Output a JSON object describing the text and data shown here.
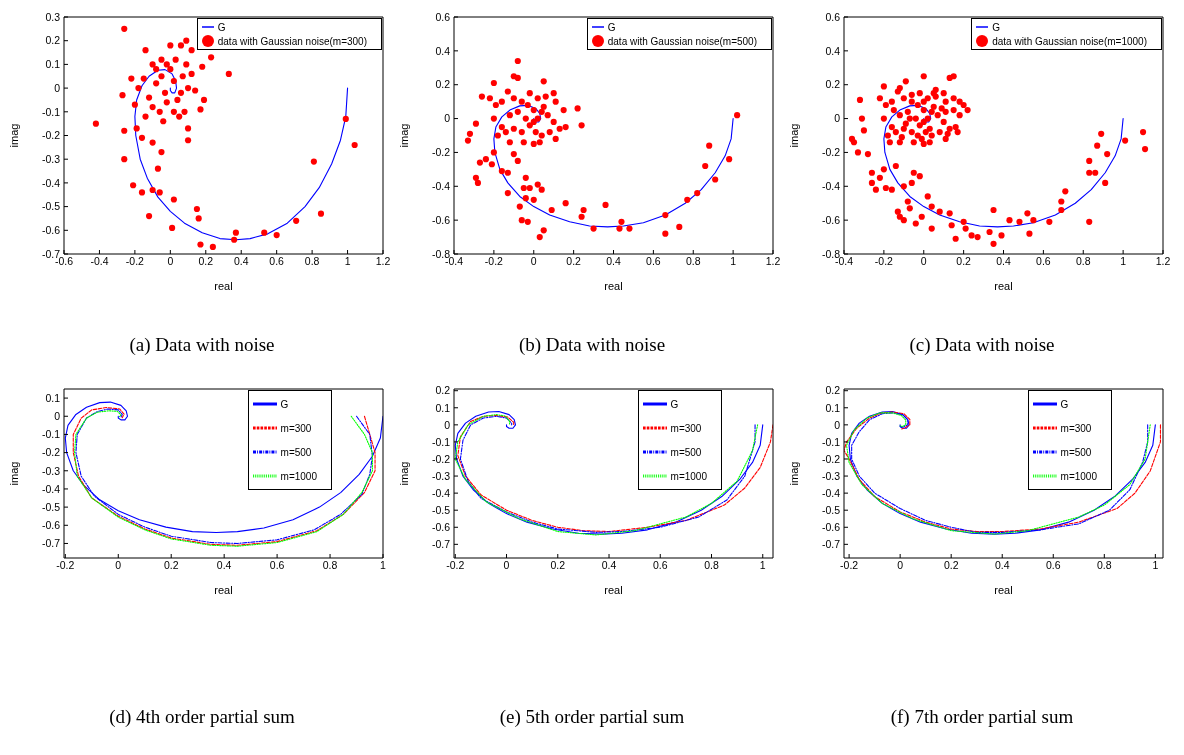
{
  "chart_data": [
    {
      "type": "scatter",
      "title": "(a) Data with noise",
      "xlabel": "real",
      "ylabel": "imag",
      "xlim": [
        -0.6,
        1.2
      ],
      "xticks": [
        -0.6,
        -0.4,
        -0.2,
        0,
        0.2,
        0.4,
        0.6,
        0.8,
        1,
        1.2
      ],
      "ylim": [
        -0.7,
        0.3
      ],
      "yticks": [
        -0.7,
        -0.6,
        -0.5,
        -0.4,
        -0.3,
        -0.2,
        -0.1,
        0,
        0.1,
        0.2,
        0.3
      ],
      "grid": false,
      "legend": "top right",
      "series": [
        {
          "name": "G",
          "type": "line",
          "color": "#0000ff",
          "line_style": "solid",
          "x": [
            1,
            0.99,
            0.96,
            0.91,
            0.84,
            0.76,
            0.66,
            0.55,
            0.45,
            0.37,
            0.28,
            0.18,
            0.08,
            0.0,
            -0.07,
            -0.13,
            -0.17,
            -0.195,
            -0.2,
            -0.19,
            -0.16,
            -0.12,
            -0.07,
            -0.03,
            0.01,
            0.03,
            0.035,
            0.025,
            0.01,
            0.0,
            0.0
          ],
          "values": [
            0,
            -0.12,
            -0.22,
            -0.32,
            -0.42,
            -0.5,
            -0.57,
            -0.615,
            -0.635,
            -0.64,
            -0.635,
            -0.61,
            -0.57,
            -0.52,
            -0.46,
            -0.38,
            -0.3,
            -0.2,
            -0.12,
            -0.05,
            0.01,
            0.05,
            0.075,
            0.078,
            0.06,
            0.03,
            0.0,
            -0.02,
            -0.02,
            -0.01,
            0.0
          ]
        },
        {
          "name": "data with Gaussian noise(m=300)",
          "marker": "circle",
          "color": "#ff0000",
          "x": [
            -0.26,
            -0.42,
            -0.26,
            -0.26,
            -0.27,
            -0.21,
            -0.16,
            -0.12,
            -0.1,
            -0.06,
            -0.07,
            -0.05,
            -0.1,
            -0.16,
            -0.19,
            0.02,
            0.01,
            0.15,
            0.16,
            0.17,
            0.24,
            0.37,
            0.36,
            0.53,
            0.6,
            0.71,
            0.81,
            0.85,
            0.99,
            1.04,
            0.33,
            0.23,
            0.18,
            0.1,
            0.1,
            0.17,
            0.19,
            -0.14,
            -0.1,
            -0.05,
            0.0,
            0.06,
            0.09,
            0.12,
            -0.22,
            -0.18,
            -0.15,
            -0.12,
            -0.08,
            -0.05,
            -0.03,
            0.0,
            0.02,
            0.04,
            0.07,
            0.1,
            0.12,
            0.14,
            -0.1,
            -0.06,
            -0.02,
            0.02,
            0.05,
            0.08,
            -0.14,
            -0.2,
            0.06,
            -0.02,
            0.03,
            -0.08,
            0.09,
            -0.04
          ],
          "values": [
            0.25,
            -0.15,
            -0.3,
            -0.18,
            -0.03,
            -0.41,
            -0.44,
            -0.54,
            -0.43,
            -0.44,
            -0.34,
            -0.27,
            -0.23,
            -0.21,
            -0.17,
            -0.47,
            -0.59,
            -0.51,
            -0.55,
            -0.66,
            -0.67,
            -0.61,
            -0.64,
            -0.61,
            -0.62,
            -0.56,
            -0.31,
            -0.53,
            -0.13,
            -0.24,
            0.06,
            0.13,
            0.09,
            -0.17,
            -0.22,
            -0.09,
            -0.05,
            0.16,
            0.1,
            0.12,
            0.18,
            0.18,
            0.2,
            0.16,
            0.04,
            0.0,
            0.04,
            -0.04,
            0.02,
            0.05,
            -0.02,
            0.08,
            0.03,
            -0.05,
            0.05,
            0.0,
            0.06,
            -0.01,
            -0.08,
            -0.1,
            -0.06,
            -0.1,
            -0.12,
            -0.1,
            -0.12,
            -0.07,
            -0.02,
            0.1,
            0.12,
            0.08,
            0.1,
            -0.14
          ]
        }
      ]
    },
    {
      "type": "scatter",
      "title": "(b) Data with noise",
      "xlabel": "real",
      "ylabel": "imag",
      "xlim": [
        -0.4,
        1.2
      ],
      "xticks": [
        -0.4,
        -0.2,
        0,
        0.2,
        0.4,
        0.6,
        0.8,
        1,
        1.2
      ],
      "ylim": [
        -0.8,
        0.6
      ],
      "yticks": [
        -0.8,
        -0.6,
        -0.4,
        -0.2,
        0,
        0.2,
        0.4,
        0.6
      ],
      "grid": false,
      "legend": "top right",
      "series": [
        {
          "name": "G",
          "type": "line",
          "color": "#0000ff",
          "line_style": "solid",
          "x": [
            1,
            0.99,
            0.96,
            0.91,
            0.84,
            0.76,
            0.66,
            0.55,
            0.45,
            0.37,
            0.28,
            0.18,
            0.08,
            0.0,
            -0.07,
            -0.13,
            -0.17,
            -0.195,
            -0.2,
            -0.19,
            -0.16,
            -0.12,
            -0.07,
            -0.03,
            0.01,
            0.03,
            0.035,
            0.025,
            0.01,
            0.0,
            0.0
          ],
          "values": [
            0,
            -0.12,
            -0.22,
            -0.32,
            -0.42,
            -0.5,
            -0.57,
            -0.615,
            -0.635,
            -0.64,
            -0.635,
            -0.61,
            -0.57,
            -0.52,
            -0.46,
            -0.38,
            -0.3,
            -0.2,
            -0.12,
            -0.05,
            0.01,
            0.05,
            0.075,
            0.078,
            0.06,
            0.03,
            0.0,
            -0.02,
            -0.02,
            -0.01,
            0.0
          ]
        },
        {
          "name": "data with Gaussian noise(m=500)",
          "marker": "circle",
          "color": "#ff0000",
          "x": [
            -0.33,
            -0.32,
            -0.29,
            -0.29,
            -0.28,
            -0.27,
            -0.24,
            -0.21,
            -0.2,
            -0.16,
            -0.13,
            -0.13,
            -0.1,
            -0.08,
            -0.07,
            -0.06,
            -0.03,
            -0.04,
            -0.04,
            -0.05,
            -0.02,
            0.0,
            0.02,
            0.04,
            0.05,
            0.03,
            0.09,
            0.16,
            0.24,
            0.25,
            0.3,
            0.36,
            0.43,
            0.44,
            0.48,
            0.66,
            0.66,
            0.73,
            0.77,
            0.82,
            0.86,
            0.88,
            0.91,
            0.98,
            1.02,
            0.22,
            0.24,
            -0.08,
            -0.1,
            -0.08,
            -0.2,
            -0.26,
            0.05,
            -0.22,
            -0.19,
            -0.16,
            -0.13,
            -0.1,
            -0.06,
            -0.02,
            0.02,
            0.06,
            0.1,
            0.11,
            0.15,
            -0.2,
            -0.16,
            -0.12,
            -0.08,
            -0.04,
            0.0,
            0.02,
            0.04,
            0.07,
            0.1,
            0.13,
            0.16,
            -0.18,
            -0.14,
            -0.1,
            -0.06,
            -0.02,
            0.01,
            0.04,
            0.08,
            0.11,
            -0.12,
            -0.05,
            0.0,
            0.03,
            -0.03,
            0.0,
            0.05
          ],
          "values": [
            -0.13,
            -0.09,
            -0.03,
            -0.35,
            -0.38,
            -0.26,
            -0.24,
            -0.27,
            -0.2,
            -0.31,
            -0.44,
            -0.32,
            -0.21,
            -0.25,
            -0.52,
            -0.6,
            -0.61,
            -0.47,
            -0.35,
            -0.41,
            -0.41,
            -0.48,
            -0.39,
            -0.42,
            -0.66,
            -0.7,
            -0.54,
            -0.5,
            -0.58,
            -0.54,
            -0.65,
            -0.51,
            -0.65,
            -0.61,
            -0.65,
            -0.68,
            -0.57,
            -0.64,
            -0.48,
            -0.44,
            -0.28,
            -0.16,
            -0.36,
            -0.24,
            0.02,
            0.06,
            -0.04,
            0.34,
            0.25,
            0.24,
            0.21,
            0.13,
            0.22,
            0.12,
            0.08,
            0.1,
            0.16,
            0.12,
            0.1,
            0.15,
            0.12,
            0.13,
            0.15,
            0.1,
            0.05,
            0.0,
            -0.05,
            0.02,
            0.04,
            0.0,
            0.05,
            0.0,
            0.04,
            0.02,
            -0.02,
            -0.06,
            -0.05,
            -0.1,
            -0.08,
            -0.06,
            -0.08,
            -0.04,
            -0.08,
            -0.1,
            -0.08,
            -0.12,
            -0.14,
            -0.14,
            -0.15,
            -0.14,
            0.08,
            -0.02,
            0.07
          ]
        }
      ]
    },
    {
      "type": "scatter",
      "title": "(c) Data with noise",
      "xlabel": "real",
      "ylabel": "imag",
      "xlim": [
        -0.4,
        1.2
      ],
      "xticks": [
        -0.4,
        -0.2,
        0,
        0.2,
        0.4,
        0.6,
        0.8,
        1,
        1.2
      ],
      "ylim": [
        -0.8,
        0.6
      ],
      "yticks": [
        -0.8,
        -0.6,
        -0.4,
        -0.2,
        0,
        0.2,
        0.4,
        0.6
      ],
      "grid": false,
      "legend": "top right",
      "series": [
        {
          "name": "G",
          "type": "line",
          "color": "#0000ff",
          "line_style": "solid",
          "x": [
            1,
            0.99,
            0.96,
            0.91,
            0.84,
            0.76,
            0.66,
            0.55,
            0.45,
            0.37,
            0.28,
            0.18,
            0.08,
            0.0,
            -0.07,
            -0.13,
            -0.17,
            -0.195,
            -0.2,
            -0.19,
            -0.16,
            -0.12,
            -0.07,
            -0.03,
            0.01,
            0.03,
            0.035,
            0.025,
            0.01,
            0.0,
            0.0
          ],
          "values": [
            0,
            -0.12,
            -0.22,
            -0.32,
            -0.42,
            -0.5,
            -0.57,
            -0.615,
            -0.635,
            -0.64,
            -0.635,
            -0.61,
            -0.57,
            -0.52,
            -0.46,
            -0.38,
            -0.3,
            -0.2,
            -0.12,
            -0.05,
            0.01,
            0.05,
            0.075,
            0.078,
            0.06,
            0.03,
            0.0,
            -0.02,
            -0.02,
            -0.01,
            0.0
          ]
        },
        {
          "name": "data with Gaussian noise(m=1000)",
          "marker": "circle",
          "color": "#ff0000",
          "x": [
            -0.36,
            -0.35,
            -0.33,
            -0.32,
            -0.31,
            -0.3,
            -0.28,
            -0.26,
            -0.26,
            -0.24,
            -0.22,
            -0.2,
            -0.19,
            -0.16,
            -0.14,
            -0.13,
            -0.12,
            -0.1,
            -0.1,
            -0.08,
            -0.07,
            -0.06,
            -0.05,
            -0.04,
            -0.02,
            -0.01,
            0.02,
            0.04,
            0.04,
            0.08,
            0.13,
            0.14,
            0.16,
            0.2,
            0.21,
            0.24,
            0.27,
            0.33,
            0.35,
            0.35,
            0.39,
            0.43,
            0.48,
            0.52,
            0.53,
            0.55,
            0.63,
            0.69,
            0.69,
            0.71,
            0.83,
            0.83,
            0.83,
            0.86,
            0.87,
            0.89,
            0.91,
            0.92,
            1.01,
            1.1,
            1.11,
            0.0,
            0.15,
            0.13,
            -0.09,
            0.22,
            0.18,
            -0.2,
            -0.22,
            -0.19,
            -0.16,
            -0.13,
            -0.1,
            -0.06,
            -0.02,
            0.02,
            0.06,
            0.1,
            0.11,
            0.15,
            -0.2,
            -0.16,
            -0.12,
            -0.08,
            -0.04,
            0.0,
            0.02,
            0.04,
            0.07,
            0.1,
            0.13,
            0.16,
            -0.18,
            -0.14,
            -0.1,
            -0.06,
            -0.02,
            0.01,
            0.04,
            0.08,
            0.11,
            -0.12,
            -0.05,
            0.0,
            0.03,
            -0.03,
            0.0,
            0.05,
            -0.15,
            -0.12,
            -0.09,
            -0.06,
            -0.03,
            0.0,
            0.03,
            0.06,
            0.09,
            0.12,
            0.15,
            0.18,
            -0.17,
            -0.11,
            -0.07,
            -0.01,
            0.05,
            0.11,
            0.17,
            0.2
          ],
          "values": [
            -0.12,
            -0.14,
            -0.2,
            0.11,
            0.0,
            -0.07,
            -0.21,
            -0.32,
            -0.38,
            -0.42,
            -0.35,
            -0.3,
            -0.41,
            -0.42,
            -0.28,
            -0.55,
            -0.58,
            -0.4,
            -0.6,
            -0.49,
            -0.53,
            -0.38,
            -0.32,
            -0.62,
            -0.34,
            -0.58,
            -0.46,
            -0.52,
            -0.65,
            -0.55,
            -0.56,
            -0.63,
            -0.71,
            -0.61,
            -0.65,
            -0.69,
            -0.7,
            -0.67,
            -0.74,
            -0.54,
            -0.69,
            -0.6,
            -0.61,
            -0.56,
            -0.68,
            -0.6,
            -0.61,
            -0.54,
            -0.49,
            -0.43,
            -0.25,
            -0.32,
            -0.61,
            -0.32,
            -0.16,
            -0.09,
            -0.38,
            -0.21,
            -0.13,
            -0.08,
            -0.18,
            0.25,
            0.25,
            0.24,
            0.22,
            0.05,
            0.1,
            0.19,
            0.12,
            0.08,
            0.1,
            0.16,
            0.12,
            0.1,
            0.15,
            0.12,
            0.13,
            0.15,
            0.1,
            0.05,
            0.0,
            -0.05,
            0.02,
            0.04,
            0.0,
            0.05,
            0.0,
            0.04,
            0.02,
            -0.02,
            -0.06,
            -0.05,
            -0.1,
            -0.08,
            -0.06,
            -0.08,
            -0.04,
            -0.08,
            -0.1,
            -0.08,
            -0.12,
            -0.14,
            -0.14,
            -0.15,
            -0.14,
            0.08,
            -0.02,
            0.07,
            0.05,
            0.18,
            -0.03,
            0.14,
            -0.1,
            0.1,
            -0.06,
            0.17,
            0.06,
            -0.09,
            0.12,
            0.02,
            -0.14,
            -0.11,
            0.0,
            -0.12,
            0.15,
            0.04,
            -0.08,
            0.08
          ]
        }
      ]
    },
    {
      "type": "line",
      "title": "(d) 4th order partial sum",
      "xlabel": "real",
      "ylabel": "imag",
      "xlim": [
        -0.205,
        1
      ],
      "xticks": [
        -0.2,
        0,
        0.2,
        0.4,
        0.6,
        0.8,
        1
      ],
      "ylim": [
        -0.78,
        0.15
      ],
      "yticks": [
        -0.7,
        -0.6,
        -0.5,
        -0.4,
        -0.3,
        -0.2,
        -0.1,
        0,
        0.1
      ],
      "grid": false,
      "legend": "top right",
      "series": [
        {
          "name": "G",
          "type": "line",
          "color": "#0000ff",
          "line_style": "solid",
          "x": [
            1,
            0.99,
            0.96,
            0.91,
            0.84,
            0.76,
            0.66,
            0.55,
            0.45,
            0.37,
            0.28,
            0.18,
            0.08,
            0.0,
            -0.07,
            -0.13,
            -0.17,
            -0.195,
            -0.2,
            -0.19,
            -0.16,
            -0.12,
            -0.07,
            -0.03,
            0.01,
            0.03,
            0.035,
            0.025,
            0.01,
            0.0,
            0.0
          ],
          "values": [
            0,
            -0.12,
            -0.22,
            -0.32,
            -0.42,
            -0.5,
            -0.57,
            -0.615,
            -0.635,
            -0.64,
            -0.635,
            -0.61,
            -0.57,
            -0.52,
            -0.46,
            -0.38,
            -0.3,
            -0.2,
            -0.12,
            -0.05,
            0.01,
            0.05,
            0.075,
            0.078,
            0.06,
            0.03,
            0.0,
            -0.02,
            -0.02,
            -0.01,
            0.0
          ]
        },
        {
          "name": "m=300",
          "color": "#ff0000",
          "line_style": "dashed",
          "x": [
            0.93,
            0.95,
            0.97,
            0.97,
            0.93,
            0.85,
            0.75,
            0.6,
            0.45,
            0.35,
            0.2,
            0.1,
            0.0,
            -0.1,
            -0.15,
            -0.17,
            -0.17,
            -0.14,
            -0.1,
            -0.045,
            0.005,
            0.022,
            0.015
          ],
          "values": [
            0,
            -0.1,
            -0.2,
            -0.3,
            -0.42,
            -0.54,
            -0.63,
            -0.69,
            -0.71,
            -0.705,
            -0.67,
            -0.62,
            -0.55,
            -0.45,
            -0.33,
            -0.2,
            -0.1,
            -0.01,
            0.035,
            0.048,
            0.04,
            0.012,
            -0.008
          ]
        },
        {
          "name": "m=500",
          "color": "#0000ff",
          "line_style": "dashdot",
          "x": [
            0.9,
            0.95,
            0.96,
            0.95,
            0.92,
            0.84,
            0.74,
            0.6,
            0.45,
            0.35,
            0.2,
            0.1,
            0.0,
            -0.09,
            -0.14,
            -0.16,
            -0.155,
            -0.12,
            -0.08,
            -0.04,
            0.0,
            0.015,
            0.01
          ],
          "values": [
            0,
            -0.1,
            -0.22,
            -0.32,
            -0.43,
            -0.54,
            -0.625,
            -0.68,
            -0.7,
            -0.695,
            -0.66,
            -0.61,
            -0.54,
            -0.44,
            -0.33,
            -0.2,
            -0.1,
            -0.01,
            0.025,
            0.04,
            0.035,
            0.01,
            -0.005
          ]
        },
        {
          "name": "m=1000",
          "color": "#00ff00",
          "line_style": "dotted",
          "x": [
            0.88,
            0.93,
            0.96,
            0.96,
            0.92,
            0.85,
            0.75,
            0.6,
            0.45,
            0.35,
            0.2,
            0.1,
            0.0,
            -0.1,
            -0.155,
            -0.165,
            -0.16,
            -0.12,
            -0.08,
            -0.035,
            -0.003,
            0.01,
            0.005
          ],
          "values": [
            0,
            -0.1,
            -0.2,
            -0.3,
            -0.42,
            -0.54,
            -0.635,
            -0.695,
            -0.715,
            -0.71,
            -0.675,
            -0.625,
            -0.555,
            -0.45,
            -0.33,
            -0.2,
            -0.1,
            -0.01,
            0.022,
            0.03,
            0.027,
            0.008,
            -0.002
          ]
        }
      ]
    },
    {
      "type": "line",
      "title": "(e) 5th order partial sum",
      "xlabel": "real",
      "ylabel": "imag",
      "xlim": [
        -0.205,
        1.04
      ],
      "xticks": [
        -0.2,
        0,
        0.2,
        0.4,
        0.6,
        0.8,
        1
      ],
      "ylim": [
        -0.78,
        0.21
      ],
      "yticks": [
        -0.7,
        -0.6,
        -0.5,
        -0.4,
        -0.3,
        -0.2,
        -0.1,
        0,
        0.1,
        0.2
      ],
      "grid": false,
      "legend": "top right",
      "series": [
        {
          "name": "G",
          "type": "line",
          "color": "#0000ff",
          "line_style": "solid",
          "x": [
            1,
            0.99,
            0.96,
            0.91,
            0.84,
            0.76,
            0.66,
            0.55,
            0.45,
            0.37,
            0.28,
            0.18,
            0.08,
            0.0,
            -0.07,
            -0.13,
            -0.17,
            -0.195,
            -0.2,
            -0.19,
            -0.16,
            -0.12,
            -0.07,
            -0.03,
            0.01,
            0.03,
            0.035,
            0.025,
            0.01,
            0.0,
            0.0
          ],
          "values": [
            0,
            -0.12,
            -0.22,
            -0.32,
            -0.42,
            -0.5,
            -0.57,
            -0.615,
            -0.635,
            -0.64,
            -0.635,
            -0.61,
            -0.57,
            -0.52,
            -0.46,
            -0.38,
            -0.3,
            -0.2,
            -0.12,
            -0.05,
            0.01,
            0.05,
            0.075,
            0.078,
            0.06,
            0.03,
            0.0,
            -0.02,
            -0.02,
            -0.01,
            0.0
          ]
        },
        {
          "name": "m=300",
          "color": "#ff0000",
          "line_style": "dashed",
          "x": [
            1.04,
            1.03,
            0.99,
            0.93,
            0.85,
            0.7,
            0.55,
            0.4,
            0.3,
            0.2,
            0.1,
            0.0,
            -0.1,
            -0.16,
            -0.19,
            -0.18,
            -0.14,
            -0.09,
            -0.04,
            0.005,
            0.028,
            0.028
          ],
          "values": [
            0,
            -0.1,
            -0.25,
            -0.37,
            -0.47,
            -0.56,
            -0.6,
            -0.625,
            -0.62,
            -0.6,
            -0.56,
            -0.5,
            -0.41,
            -0.3,
            -0.18,
            -0.07,
            0.02,
            0.05,
            0.055,
            0.045,
            0.015,
            0.0
          ]
        },
        {
          "name": "m=500",
          "color": "#0000ff",
          "line_style": "dashdot",
          "x": [
            0.97,
            0.97,
            0.93,
            0.86,
            0.75,
            0.6,
            0.45,
            0.35,
            0.2,
            0.1,
            0.0,
            -0.1,
            -0.15,
            -0.18,
            -0.17,
            -0.14,
            -0.09,
            -0.04,
            0.0,
            0.02,
            0.02
          ],
          "values": [
            0,
            -0.1,
            -0.3,
            -0.44,
            -0.54,
            -0.6,
            -0.625,
            -0.63,
            -0.61,
            -0.57,
            -0.51,
            -0.43,
            -0.33,
            -0.2,
            -0.09,
            0.0,
            0.04,
            0.05,
            0.04,
            0.01,
            0.0
          ]
        },
        {
          "name": "m=1000",
          "color": "#00ff00",
          "line_style": "dotted",
          "x": [
            0.98,
            0.96,
            0.9,
            0.8,
            0.7,
            0.5,
            0.35,
            0.2,
            0.05,
            -0.08,
            -0.16,
            -0.2,
            -0.19,
            -0.15,
            -0.09,
            -0.04,
            -0.005,
            0.012,
            0.012
          ],
          "values": [
            0,
            -0.15,
            -0.33,
            -0.46,
            -0.54,
            -0.62,
            -0.645,
            -0.625,
            -0.55,
            -0.45,
            -0.32,
            -0.2,
            -0.1,
            0.0,
            0.05,
            0.06,
            0.052,
            0.02,
            0.005
          ]
        }
      ]
    },
    {
      "type": "line",
      "title": "(f) 7th order partial sum",
      "xlabel": "real",
      "ylabel": "imag",
      "xlim": [
        -0.22,
        1.03
      ],
      "xticks": [
        -0.2,
        0,
        0.2,
        0.4,
        0.6,
        0.8,
        1
      ],
      "ylim": [
        -0.78,
        0.21
      ],
      "yticks": [
        -0.7,
        -0.6,
        -0.5,
        -0.4,
        -0.3,
        -0.2,
        -0.1,
        0,
        0.1,
        0.2
      ],
      "grid": false,
      "legend": "top right",
      "series": [
        {
          "name": "G",
          "type": "line",
          "color": "#0000ff",
          "line_style": "solid",
          "x": [
            1,
            0.99,
            0.96,
            0.91,
            0.84,
            0.76,
            0.66,
            0.55,
            0.45,
            0.37,
            0.28,
            0.18,
            0.08,
            0.0,
            -0.07,
            -0.13,
            -0.17,
            -0.195,
            -0.2,
            -0.19,
            -0.16,
            -0.12,
            -0.07,
            -0.03,
            0.01,
            0.03,
            0.035,
            0.025,
            0.01,
            0.0,
            0.0
          ],
          "values": [
            0,
            -0.12,
            -0.22,
            -0.32,
            -0.42,
            -0.5,
            -0.57,
            -0.615,
            -0.635,
            -0.64,
            -0.635,
            -0.61,
            -0.57,
            -0.52,
            -0.46,
            -0.38,
            -0.3,
            -0.2,
            -0.12,
            -0.05,
            0.01,
            0.05,
            0.075,
            0.078,
            0.06,
            0.03,
            0.0,
            -0.02,
            -0.02,
            -0.01,
            0.0
          ]
        },
        {
          "name": "m=300",
          "color": "#ff0000",
          "line_style": "dashed",
          "x": [
            1.02,
            1.02,
            0.98,
            0.92,
            0.85,
            0.7,
            0.55,
            0.4,
            0.3,
            0.2,
            0.1,
            0.0,
            -0.1,
            -0.16,
            -0.2,
            -0.22,
            -0.21,
            -0.17,
            -0.12,
            -0.07,
            -0.03,
            0.015,
            0.038,
            0.038,
            0.015,
            0.006
          ],
          "values": [
            0,
            -0.1,
            -0.27,
            -0.4,
            -0.49,
            -0.57,
            -0.61,
            -0.625,
            -0.625,
            -0.61,
            -0.57,
            -0.51,
            -0.42,
            -0.32,
            -0.2,
            -0.15,
            -0.1,
            -0.02,
            0.04,
            0.07,
            0.075,
            0.065,
            0.032,
            0.0,
            -0.02,
            -0.024
          ]
        },
        {
          "name": "m=500",
          "color": "#0000ff",
          "line_style": "dashdot",
          "x": [
            0.97,
            0.97,
            0.95,
            0.9,
            0.82,
            0.7,
            0.55,
            0.4,
            0.3,
            0.2,
            0.1,
            0.0,
            -0.1,
            -0.16,
            -0.19,
            -0.19,
            -0.16,
            -0.12,
            -0.07,
            -0.03,
            0.01,
            0.03,
            0.03,
            0.01,
            0.0
          ],
          "values": [
            0,
            -0.1,
            -0.22,
            -0.38,
            -0.5,
            -0.58,
            -0.615,
            -0.63,
            -0.63,
            -0.6,
            -0.56,
            -0.49,
            -0.4,
            -0.3,
            -0.2,
            -0.12,
            -0.04,
            0.03,
            0.065,
            0.07,
            0.06,
            0.03,
            0.0,
            -0.015,
            -0.01
          ]
        },
        {
          "name": "m=1000",
          "color": "#00ff00",
          "line_style": "dotted",
          "x": [
            0.98,
            0.96,
            0.9,
            0.8,
            0.7,
            0.5,
            0.37,
            0.2,
            0.05,
            -0.07,
            -0.15,
            -0.2,
            -0.21,
            -0.18,
            -0.13,
            -0.08,
            -0.03,
            0.005,
            0.022,
            0.022,
            0.008,
            0.0
          ],
          "values": [
            0,
            -0.2,
            -0.35,
            -0.47,
            -0.54,
            -0.62,
            -0.64,
            -0.62,
            -0.55,
            -0.46,
            -0.35,
            -0.22,
            -0.12,
            -0.03,
            0.04,
            0.07,
            0.07,
            0.055,
            0.028,
            0.0,
            -0.01,
            -0.005
          ]
        }
      ]
    }
  ]
}
